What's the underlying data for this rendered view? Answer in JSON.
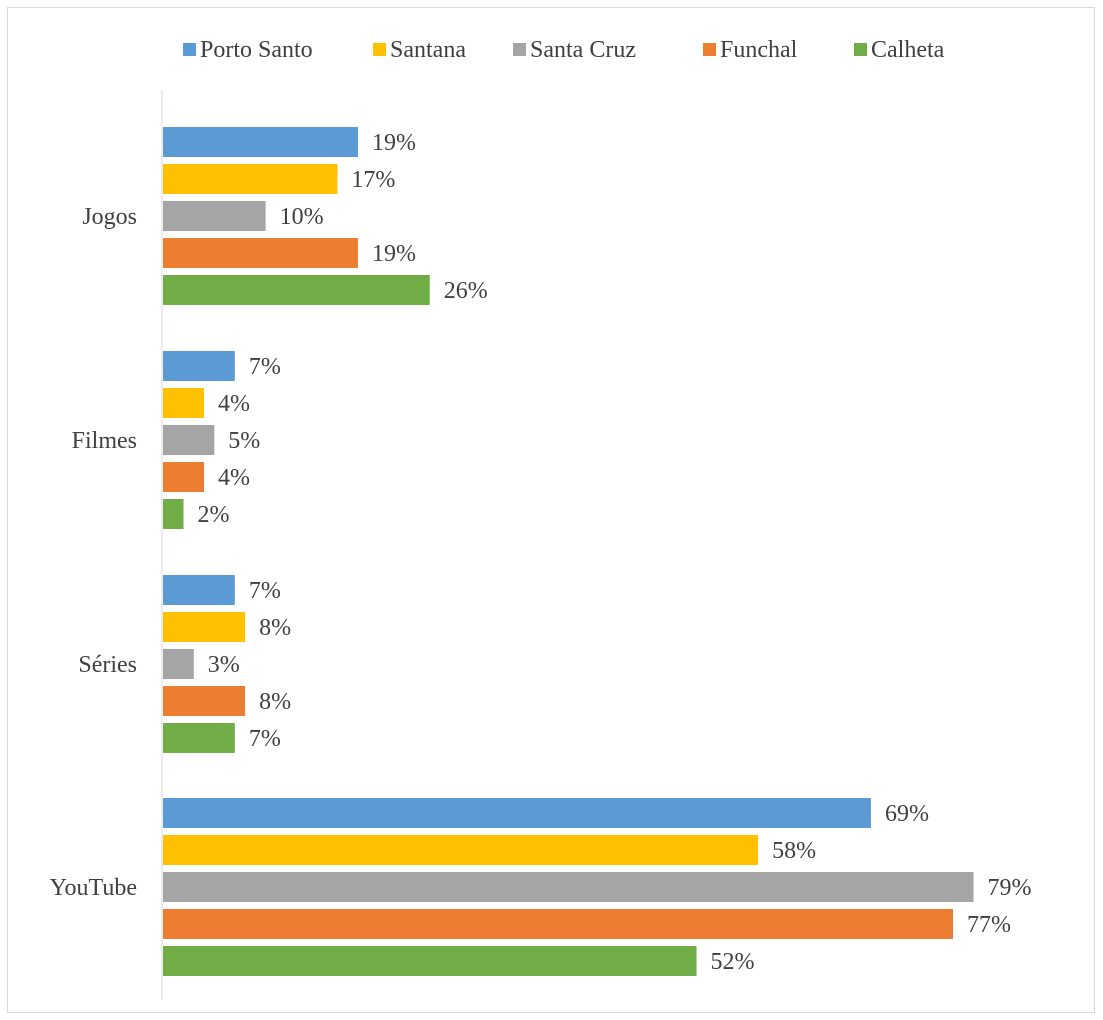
{
  "chart_data": {
    "type": "bar",
    "orientation": "horizontal",
    "title": "",
    "xlabel": "",
    "ylabel": "",
    "xlim": [
      0,
      100
    ],
    "grid": false,
    "legend_position": "top",
    "categories": [
      "Jogos",
      "Filmes",
      "Séries",
      "YouTube"
    ],
    "series": [
      {
        "name": "Porto Santo",
        "color": "#5b9bd5",
        "values": [
          19,
          7,
          7,
          69
        ],
        "labels": [
          "19%",
          "7%",
          "7%",
          "69%"
        ]
      },
      {
        "name": "Santana",
        "color": "#ffc000",
        "values": [
          17,
          4,
          8,
          58
        ],
        "labels": [
          "17%",
          "4%",
          "8%",
          "58%"
        ]
      },
      {
        "name": "Santa Cruz",
        "color": "#a5a5a5",
        "values": [
          10,
          5,
          3,
          79
        ],
        "labels": [
          "10%",
          "5%",
          "3%",
          "79%"
        ]
      },
      {
        "name": "Funchal",
        "color": "#ed7d31",
        "values": [
          19,
          4,
          8,
          77
        ],
        "labels": [
          "19%",
          "4%",
          "8%",
          "77%"
        ]
      },
      {
        "name": "Calheta",
        "color": "#70ad47",
        "values": [
          26,
          2,
          7,
          52
        ],
        "labels": [
          "26%",
          "2%",
          "7%",
          "52%"
        ]
      }
    ]
  }
}
